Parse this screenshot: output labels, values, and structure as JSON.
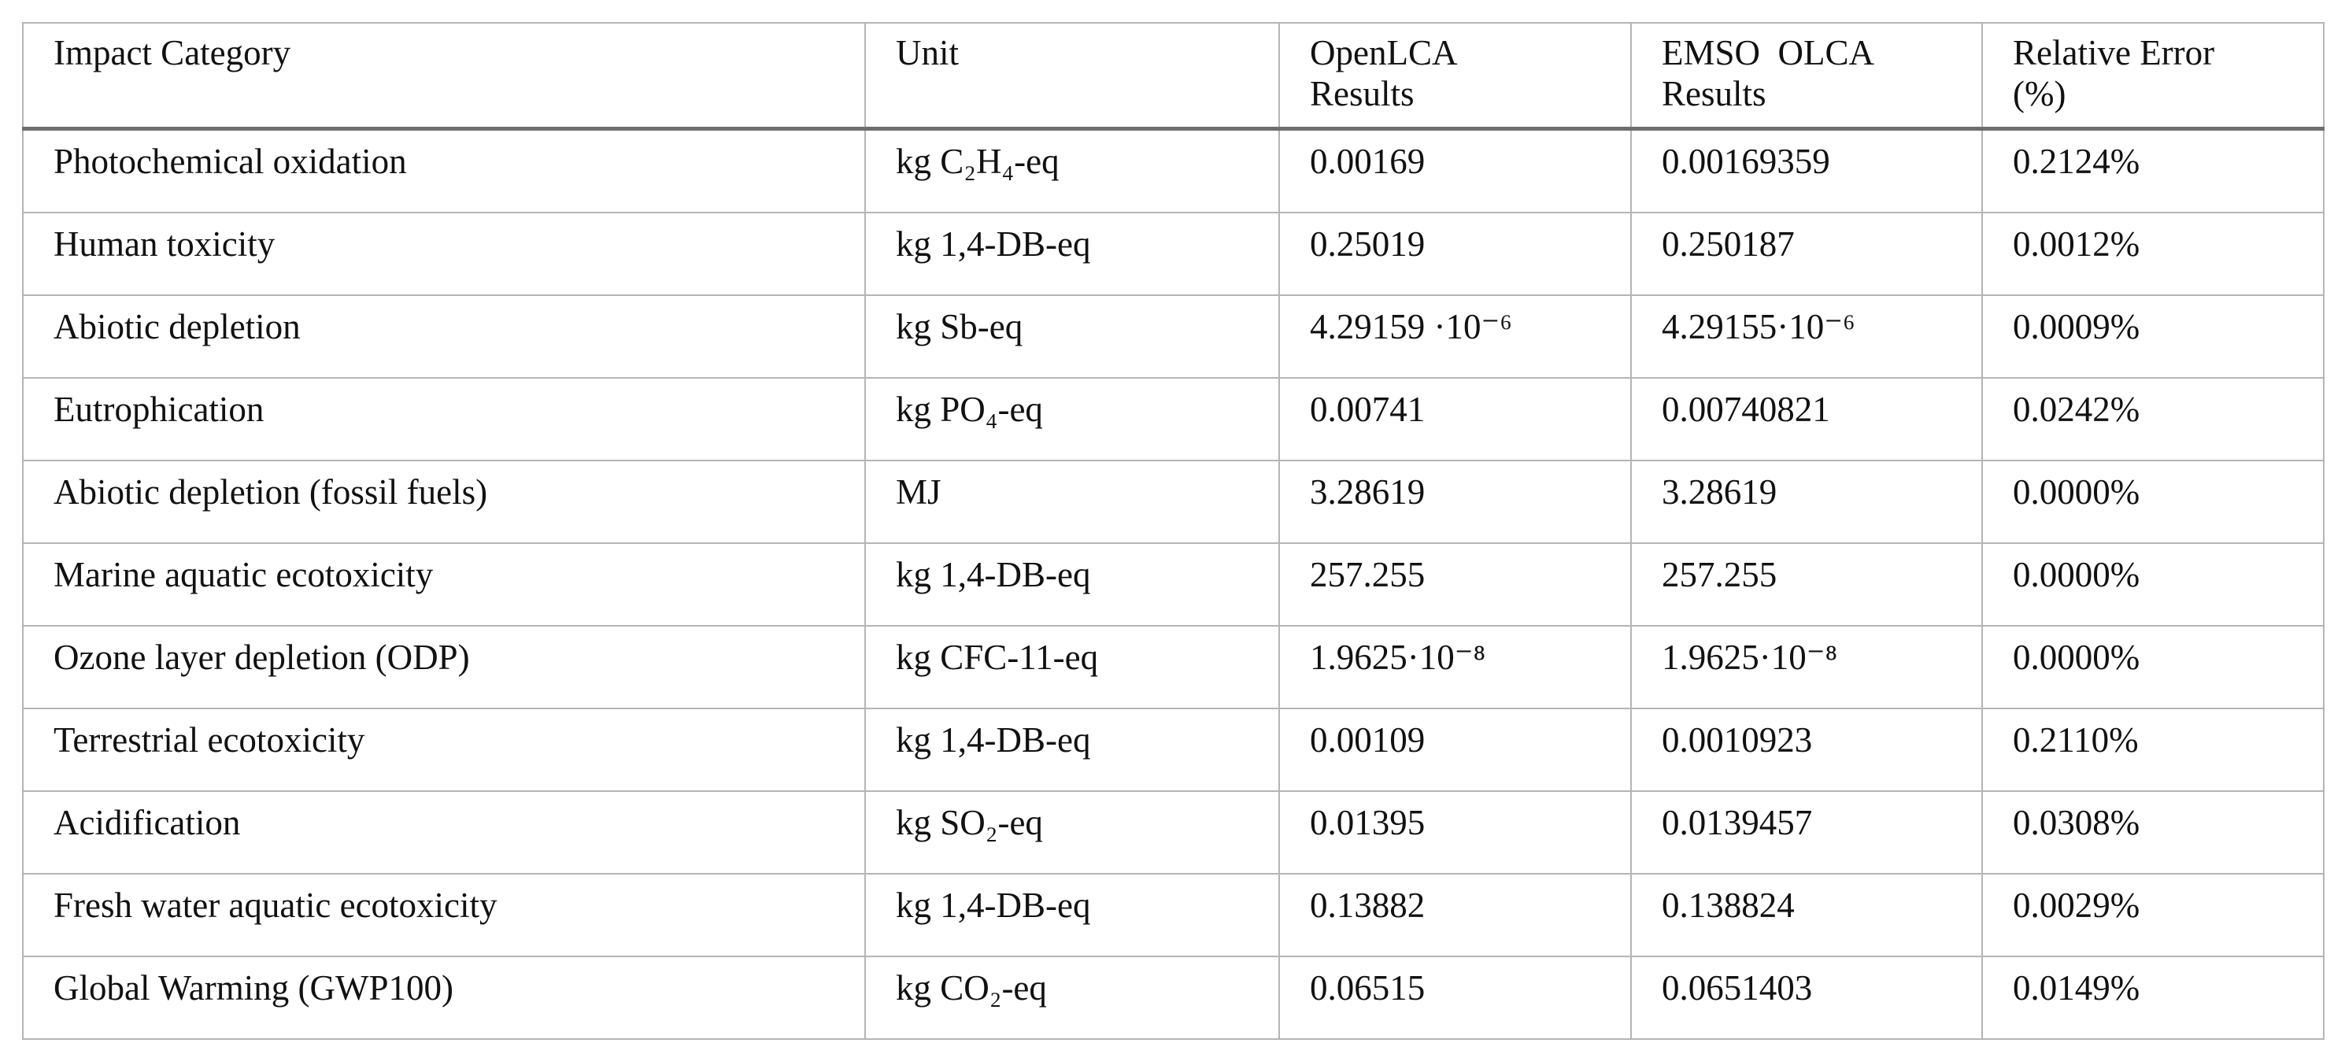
{
  "table": {
    "header": [
      "Impact Category",
      "Unit",
      "OpenLCA Results",
      "EMSO  OLCA Results",
      "Relative Error (%)"
    ],
    "rows": [
      [
        "Photochemical oxidation",
        "kg C₂H₄-eq",
        "0.00169",
        "0.00169359",
        "0.2124%"
      ],
      [
        "Human toxicity",
        "kg 1,4-DB-eq",
        "0.25019",
        "0.250187",
        "0.0012%"
      ],
      [
        "Abiotic depletion",
        "kg Sb-eq",
        "4.29159 ·10⁻⁶",
        "4.29155·10⁻⁶",
        "0.0009%"
      ],
      [
        "Eutrophication",
        "kg PO₄-eq",
        "0.00741",
        "0.00740821",
        "0.0242%"
      ],
      [
        "Abiotic depletion (fossil fuels)",
        "MJ",
        "3.28619",
        "3.28619",
        "0.0000%"
      ],
      [
        "Marine aquatic ecotoxicity",
        "kg 1,4-DB-eq",
        "257.255",
        "257.255",
        "0.0000%"
      ],
      [
        "Ozone layer depletion (ODP)",
        "kg CFC-11-eq",
        "1.9625·10⁻⁸",
        "1.9625·10⁻⁸",
        "0.0000%"
      ],
      [
        "Terrestrial ecotoxicity",
        "kg 1,4-DB-eq",
        "0.00109",
        "0.0010923",
        "0.2110%"
      ],
      [
        "Acidification",
        "kg SO₂-eq",
        "0.01395",
        "0.0139457",
        "0.0308%"
      ],
      [
        "Fresh water aquatic ecotoxicity",
        "kg 1,4-DB-eq",
        "0.13882",
        "0.138824",
        "0.0029%"
      ],
      [
        "Global Warming (GWP100)",
        "kg CO₂-eq",
        "0.06515",
        "0.0651403",
        "0.0149%"
      ]
    ]
  }
}
